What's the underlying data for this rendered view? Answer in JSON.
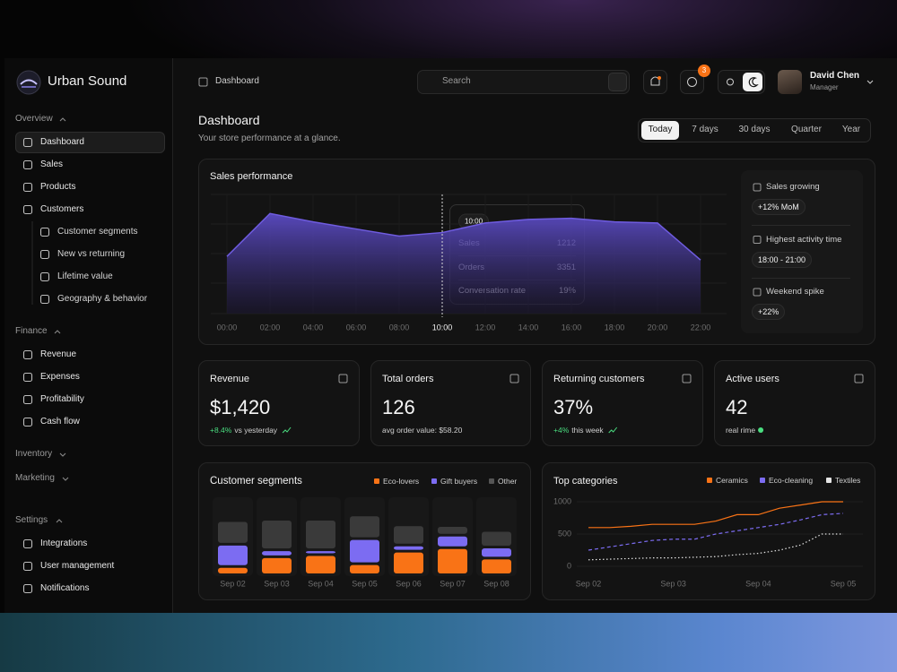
{
  "sidebar": {
    "brand": "Urban Sound",
    "groups": [
      {
        "title": "Overview",
        "items": [
          "Dashboard",
          "Sales",
          "Products",
          "Customers"
        ],
        "subitems": [
          "Customer segments",
          "New vs returning",
          "Lifetime value",
          "Geography & behavior"
        ]
      },
      {
        "title": "Finance",
        "items": [
          "Revenue",
          "Expenses",
          "Profitability",
          "Cash flow"
        ]
      },
      {
        "title": "Inventory"
      },
      {
        "title": "Marketing"
      },
      {
        "title": "Settings",
        "items": [
          "Integrations",
          "User management",
          "Notifications"
        ]
      }
    ]
  },
  "topbar": {
    "breadcrumb": "Dashboard",
    "search": "Search",
    "badge": "3",
    "user": {
      "name": "David Chen",
      "role": "Manager"
    }
  },
  "header": {
    "title": "Dashboard",
    "subtitle": "Your store performance at a glance.",
    "ranges": [
      "Today",
      "7 days",
      "30 days",
      "Quarter",
      "Year"
    ],
    "active_range": 0
  },
  "sales_performance": {
    "type": "area",
    "title": "Sales performance",
    "categories": [
      "00:00",
      "02:00",
      "04:00",
      "06:00",
      "08:00",
      "10:00",
      "12:00",
      "14:00",
      "16:00",
      "18:00",
      "20:00",
      "22:00"
    ],
    "values": [
      48,
      84,
      77,
      71,
      65,
      68,
      76,
      79,
      80,
      77,
      76,
      45
    ],
    "ylim": [
      0,
      100
    ],
    "color": "#6f5ce0",
    "tooltip": {
      "time": "10:00",
      "rows": [
        {
          "label": "Sales",
          "value": "1212"
        },
        {
          "label": "Orders",
          "value": "3351"
        },
        {
          "label": "Conversation rate",
          "value": "19%"
        }
      ]
    }
  },
  "insights": [
    {
      "label": "Sales growing",
      "value": "+12% MoM"
    },
    {
      "label": "Highest activity time",
      "value": "18:00 - 21:00"
    },
    {
      "label": "Weekend spike",
      "value": "+22%"
    }
  ],
  "kpis": [
    {
      "title": "Revenue",
      "value": "$1,420",
      "change": "+8.4%",
      "note": "vs yesterday"
    },
    {
      "title": "Total orders",
      "value": "126",
      "note": "avg order value: $58.20"
    },
    {
      "title": "Returning customers",
      "value": "37%",
      "change": "+4%",
      "note": "this week"
    },
    {
      "title": "Active users",
      "value": "42",
      "note": "real rime"
    }
  ],
  "customer_segments": {
    "type": "bar",
    "title": "Customer segments",
    "categories": [
      "Sep 02",
      "Sep 03",
      "Sep 04",
      "Sep 05",
      "Sep 06",
      "Sep 07",
      "Sep 08"
    ],
    "series": [
      {
        "name": "Eco-lovers",
        "color": "#f97316",
        "values": [
          8,
          22,
          25,
          12,
          30,
          35,
          20
        ]
      },
      {
        "name": "Gift buyers",
        "color": "#7c6cf2",
        "values": [
          28,
          6,
          3,
          32,
          5,
          14,
          12
        ]
      },
      {
        "name": "Other",
        "color": "#3a3a3a",
        "values": [
          30,
          40,
          40,
          30,
          25,
          10,
          20
        ]
      }
    ],
    "ylim": [
      0,
      100
    ]
  },
  "top_categories": {
    "type": "line",
    "title": "Top categories",
    "categories": [
      "Sep 02",
      null,
      null,
      null,
      "Sep 03",
      null,
      null,
      null,
      "Sep 04",
      null,
      null,
      null,
      "Sep 05"
    ],
    "series": [
      {
        "name": "Ceramics",
        "color": "#f97316",
        "dash": "solid",
        "values": [
          600,
          600,
          620,
          650,
          650,
          650,
          700,
          800,
          800,
          900,
          950,
          1000,
          1000
        ]
      },
      {
        "name": "Eco-cleaning",
        "color": "#7c6cf2",
        "dash": "dashed",
        "values": [
          250,
          300,
          350,
          400,
          420,
          420,
          500,
          550,
          600,
          650,
          720,
          800,
          820
        ]
      },
      {
        "name": "Textiles",
        "color": "#e5e5e5",
        "dash": "dotted",
        "values": [
          100,
          110,
          120,
          130,
          130,
          140,
          150,
          180,
          200,
          250,
          330,
          500,
          500
        ]
      }
    ],
    "ylim": [
      0,
      1000
    ],
    "yticks": [
      0,
      500,
      1000
    ]
  }
}
